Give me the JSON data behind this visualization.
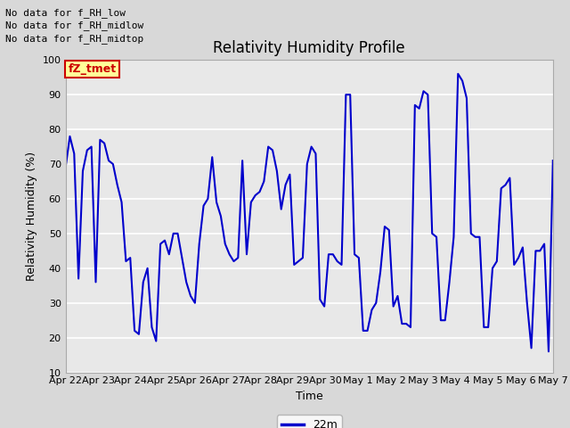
{
  "title": "Relativity Humidity Profile",
  "xlabel": "Time",
  "ylabel": "Relativity Humidity (%)",
  "ylim": [
    10,
    100
  ],
  "yticks": [
    10,
    20,
    30,
    40,
    50,
    60,
    70,
    80,
    90,
    100
  ],
  "line_color": "#0000CC",
  "line_width": 1.5,
  "bg_color": "#D8D8D8",
  "plot_bg_color": "#E8E8E8",
  "legend_label": "22m",
  "annotations_left": [
    "No data for f_RH_low",
    "No data for f_RH_midlow",
    "No data for f_RH_midtop"
  ],
  "legend_box_color": "#FFFF99",
  "legend_box_edge": "#CC0000",
  "legend_text_color": "#CC0000",
  "legend_box_text": "fZ_tmet",
  "xtick_labels": [
    "Apr 22",
    "Apr 23",
    "Apr 24",
    "Apr 25",
    "Apr 26",
    "Apr 27",
    "Apr 28",
    "Apr 29",
    "Apr 30",
    "May 1",
    "May 2",
    "May 3",
    "May 4",
    "May 5",
    "May 6",
    "May 7"
  ],
  "y_values": [
    69,
    78,
    73,
    37,
    68,
    74,
    75,
    36,
    77,
    76,
    71,
    70,
    64,
    59,
    42,
    43,
    22,
    21,
    36,
    40,
    23,
    19,
    47,
    48,
    44,
    50,
    50,
    43,
    36,
    32,
    30,
    47,
    58,
    60,
    72,
    59,
    55,
    47,
    44,
    42,
    43,
    71,
    44,
    59,
    61,
    62,
    65,
    75,
    74,
    68,
    57,
    64,
    67,
    41,
    42,
    43,
    70,
    75,
    73,
    31,
    29,
    44,
    44,
    42,
    41,
    90,
    90,
    44,
    43,
    22,
    22,
    28,
    30,
    39,
    52,
    51,
    29,
    32,
    24,
    24,
    23,
    87,
    86,
    91,
    90,
    50,
    49,
    25,
    25,
    36,
    49,
    96,
    94,
    89,
    50,
    49,
    49,
    23,
    23,
    40,
    42,
    63,
    64,
    66,
    41,
    43,
    46,
    30,
    17,
    45,
    45,
    47,
    16,
    71
  ],
  "num_points": 114,
  "title_fontsize": 12,
  "axis_label_fontsize": 9,
  "tick_fontsize": 8,
  "annotation_fontsize": 8
}
